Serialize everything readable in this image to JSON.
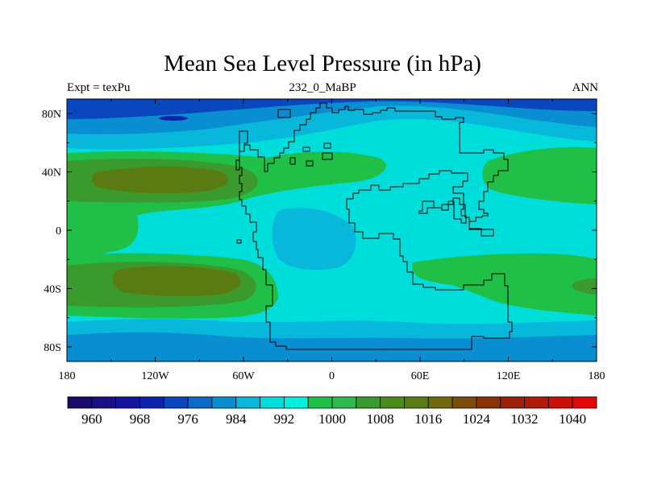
{
  "title": "Mean Sea Level Pressure (in hPa)",
  "subtitle_left": "Expt = texPu",
  "subtitle_center": "232_0_MaBP",
  "subtitle_right": "ANN",
  "map": {
    "lon_labels": [
      "180",
      "120W",
      "60W",
      "0",
      "60E",
      "120E",
      "180"
    ],
    "lat_labels": [
      "80N",
      "40N",
      "0",
      "40S",
      "80S"
    ]
  },
  "colorbar": {
    "labels": [
      "960",
      "968",
      "976",
      "984",
      "992",
      "1000",
      "1008",
      "1016",
      "1024",
      "1032",
      "1040"
    ],
    "colors": [
      "#1b0a6b",
      "#1a0f86",
      "#13169c",
      "#0c23ae",
      "#0a46be",
      "#0b6ac8",
      "#0a8ed2",
      "#08b8db",
      "#00dedb",
      "#00f0e0",
      "#20c048",
      "#30b850",
      "#3a9a2e",
      "#4c8a1c",
      "#5a7a12",
      "#6f6a0e",
      "#7c4c0a",
      "#8c3008",
      "#9e2008",
      "#b01808",
      "#c81008",
      "#e00808"
    ]
  },
  "colors": {
    "c988": "#0a46be",
    "c992": "#0a8ed2",
    "c996": "#08b8db",
    "c1000": "#00dedb",
    "c1004": "#00f0e0",
    "c1008": "#20c048",
    "c1012": "#3a9a2e",
    "c1016": "#5a7a12"
  }
}
